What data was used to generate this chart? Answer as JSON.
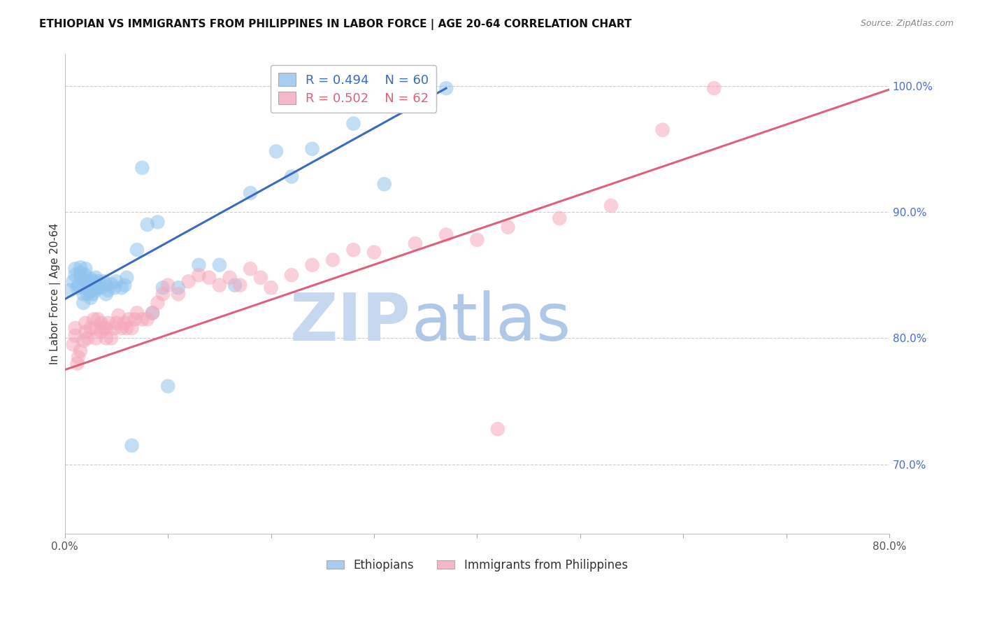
{
  "title": "ETHIOPIAN VS IMMIGRANTS FROM PHILIPPINES IN LABOR FORCE | AGE 20-64 CORRELATION CHART",
  "source": "Source: ZipAtlas.com",
  "ylabel_left": "In Labor Force | Age 20-64",
  "xmin": 0.0,
  "xmax": 0.8,
  "ymin": 0.645,
  "ymax": 1.025,
  "ytick_right": [
    0.7,
    0.8,
    0.9,
    1.0
  ],
  "ytick_right_labels": [
    "70.0%",
    "80.0%",
    "90.0%",
    "100.0%"
  ],
  "xtick_vals": [
    0.0,
    0.1,
    0.2,
    0.3,
    0.4,
    0.5,
    0.6,
    0.7,
    0.8
  ],
  "xtick_labels": [
    "0.0%",
    "",
    "",
    "",
    "",
    "",
    "",
    "",
    "80.0%"
  ],
  "grid_color": "#cccccc",
  "background_color": "#ffffff",
  "ethiopian_color": "#8ec4ee",
  "philippine_color": "#f5a8bb",
  "ethiopian_line_color": "#3a6bbf",
  "philippine_line_color": "#e0607a",
  "legend_box_color_eth": "#a8cdf0",
  "legend_box_color_phi": "#f5b8c8",
  "legend_R_eth": "R = 0.494",
  "legend_N_eth": "N = 60",
  "legend_R_phi": "R = 0.502",
  "legend_N_phi": "N = 62",
  "watermark_ZIP": "ZIP",
  "watermark_atlas": "atlas",
  "watermark_color_ZIP": "#c5d8f0",
  "watermark_color_atlas": "#b0c8e8",
  "title_fontsize": 11,
  "axis_label_fontsize": 11,
  "tick_fontsize": 11,
  "right_tick_color": "#4a6cd4",
  "eth_line_x0": 0.0,
  "eth_line_x1": 0.37,
  "eth_line_y0": 0.831,
  "eth_line_y1": 0.998,
  "phi_line_x0": 0.0,
  "phi_line_x1": 0.8,
  "phi_line_y0": 0.775,
  "phi_line_y1": 0.997,
  "ethiopians_x": [
    0.005,
    0.008,
    0.01,
    0.01,
    0.012,
    0.013,
    0.015,
    0.015,
    0.015,
    0.018,
    0.018,
    0.018,
    0.02,
    0.02,
    0.02,
    0.022,
    0.022,
    0.023,
    0.025,
    0.025,
    0.025,
    0.025,
    0.027,
    0.028,
    0.028,
    0.03,
    0.03,
    0.03,
    0.032,
    0.033,
    0.035,
    0.038,
    0.04,
    0.04,
    0.042,
    0.045,
    0.048,
    0.05,
    0.055,
    0.058,
    0.06,
    0.065,
    0.07,
    0.075,
    0.08,
    0.085,
    0.09,
    0.095,
    0.1,
    0.11,
    0.13,
    0.15,
    0.165,
    0.18,
    0.205,
    0.22,
    0.24,
    0.28,
    0.31,
    0.37
  ],
  "ethiopians_y": [
    0.838,
    0.845,
    0.85,
    0.855,
    0.84,
    0.842,
    0.848,
    0.852,
    0.856,
    0.828,
    0.835,
    0.84,
    0.845,
    0.85,
    0.855,
    0.835,
    0.84,
    0.845,
    0.832,
    0.837,
    0.842,
    0.847,
    0.835,
    0.84,
    0.845,
    0.838,
    0.843,
    0.848,
    0.84,
    0.845,
    0.84,
    0.845,
    0.835,
    0.842,
    0.838,
    0.843,
    0.84,
    0.845,
    0.84,
    0.842,
    0.848,
    0.715,
    0.87,
    0.935,
    0.89,
    0.82,
    0.892,
    0.84,
    0.762,
    0.84,
    0.858,
    0.858,
    0.842,
    0.915,
    0.948,
    0.928,
    0.95,
    0.97,
    0.922,
    0.998
  ],
  "philippine_x": [
    0.008,
    0.01,
    0.01,
    0.012,
    0.013,
    0.015,
    0.018,
    0.02,
    0.02,
    0.022,
    0.025,
    0.028,
    0.03,
    0.03,
    0.032,
    0.035,
    0.035,
    0.038,
    0.04,
    0.04,
    0.042,
    0.045,
    0.048,
    0.05,
    0.052,
    0.055,
    0.058,
    0.06,
    0.062,
    0.065,
    0.068,
    0.07,
    0.075,
    0.08,
    0.085,
    0.09,
    0.095,
    0.1,
    0.11,
    0.12,
    0.13,
    0.14,
    0.15,
    0.16,
    0.17,
    0.18,
    0.19,
    0.2,
    0.22,
    0.24,
    0.26,
    0.28,
    0.3,
    0.34,
    0.37,
    0.4,
    0.43,
    0.48,
    0.53,
    0.58,
    0.63,
    0.42
  ],
  "philippine_y": [
    0.795,
    0.802,
    0.808,
    0.78,
    0.785,
    0.79,
    0.798,
    0.805,
    0.812,
    0.8,
    0.808,
    0.815,
    0.8,
    0.808,
    0.815,
    0.805,
    0.812,
    0.808,
    0.8,
    0.808,
    0.812,
    0.8,
    0.808,
    0.812,
    0.818,
    0.808,
    0.812,
    0.808,
    0.815,
    0.808,
    0.815,
    0.82,
    0.815,
    0.815,
    0.82,
    0.828,
    0.835,
    0.842,
    0.835,
    0.845,
    0.85,
    0.848,
    0.842,
    0.848,
    0.842,
    0.855,
    0.848,
    0.84,
    0.85,
    0.858,
    0.862,
    0.87,
    0.868,
    0.875,
    0.882,
    0.878,
    0.888,
    0.895,
    0.905,
    0.965,
    0.998,
    0.728
  ]
}
